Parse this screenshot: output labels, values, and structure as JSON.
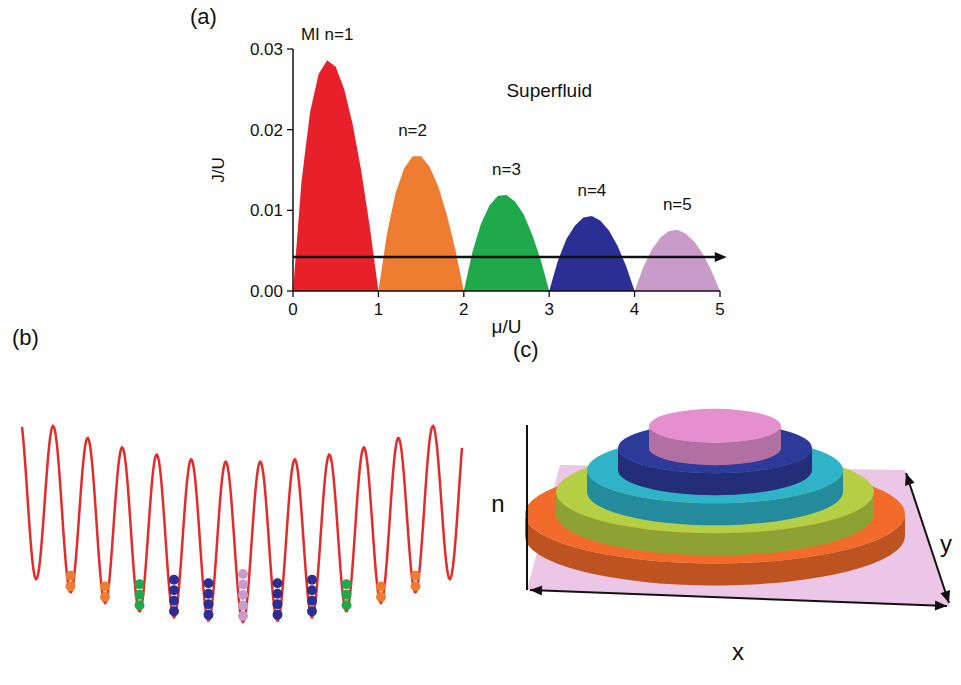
{
  "chart_data": {
    "type": "area",
    "x_label": "μ/U",
    "y_label": "J/U",
    "xlim": [
      0,
      5
    ],
    "xticks": [
      0,
      1,
      2,
      3,
      4,
      5
    ],
    "ylim": [
      0,
      0.03
    ],
    "yticks": [
      {
        "value": 0,
        "label": "0.00"
      },
      {
        "value": 0.01,
        "label": "0.01"
      },
      {
        "value": 0.02,
        "label": "0.02"
      },
      {
        "value": 0.03,
        "label": "0.03"
      }
    ],
    "grid": false,
    "series": [
      {
        "name": "MI n=1",
        "color": "#e8202a",
        "x": [
          0,
          0.1,
          0.2,
          0.3,
          0.4,
          0.5,
          0.6,
          0.7,
          0.8,
          0.9,
          1
        ],
        "values": [
          0,
          0.0136,
          0.0222,
          0.0269,
          0.0286,
          0.0278,
          0.025,
          0.0206,
          0.0148,
          0.0079,
          0
        ]
      },
      {
        "name": "n=2",
        "color": "#ef7d31",
        "x": [
          1,
          1.1,
          1.2,
          1.3,
          1.4,
          1.5,
          1.6,
          1.7,
          1.8,
          1.9,
          2
        ],
        "values": [
          0,
          0.0071,
          0.0121,
          0.0152,
          0.0167,
          0.0167,
          0.0154,
          0.013,
          0.0095,
          0.0052,
          0
        ]
      },
      {
        "name": "n=3",
        "color": "#1fa94a",
        "x": [
          2,
          2.1,
          2.2,
          2.3,
          2.4,
          2.5,
          2.6,
          2.7,
          2.8,
          2.9,
          3
        ],
        "values": [
          0,
          0.0048,
          0.0083,
          0.0106,
          0.0118,
          0.0119,
          0.0111,
          0.0095,
          0.007,
          0.0039,
          0
        ]
      },
      {
        "name": "n=4",
        "color": "#2b2f94",
        "x": [
          3,
          3.1,
          3.2,
          3.3,
          3.4,
          3.5,
          3.6,
          3.7,
          3.8,
          3.9,
          4
        ],
        "values": [
          0,
          0.0037,
          0.0064,
          0.0081,
          0.0091,
          0.0093,
          0.0087,
          0.0075,
          0.0056,
          0.0031,
          0
        ]
      },
      {
        "name": "n=5",
        "color": "#c99bc9",
        "x": [
          4,
          4.1,
          4.2,
          4.3,
          4.4,
          4.5,
          4.6,
          4.7,
          4.8,
          4.9,
          5
        ],
        "values": [
          0,
          0.0029,
          0.0051,
          0.0066,
          0.0074,
          0.0076,
          0.0071,
          0.0061,
          0.0046,
          0.0025,
          0
        ]
      }
    ],
    "annotations": [
      {
        "text": "Superfluid",
        "x": 3.0,
        "y": 0.024
      }
    ],
    "arrow": {
      "x_start": 0,
      "x_end": 5.08,
      "y": 0.0042
    }
  },
  "panel_labels": [
    "(a)",
    "(b)",
    "(c)"
  ],
  "lattice": {
    "occupations": [
      2,
      2,
      3,
      4,
      4,
      5,
      4,
      4,
      3,
      2,
      2
    ]
  },
  "wedding_cake": {
    "levels": [
      1,
      2,
      3,
      4,
      5
    ],
    "colors": [
      "#f26b2a",
      "#b5cf45",
      "#2fb3c8",
      "#2e3a9a",
      "#e58fcf"
    ],
    "axis_labels": {
      "vertical": "n",
      "horizontal": "x",
      "depth": "y"
    }
  }
}
